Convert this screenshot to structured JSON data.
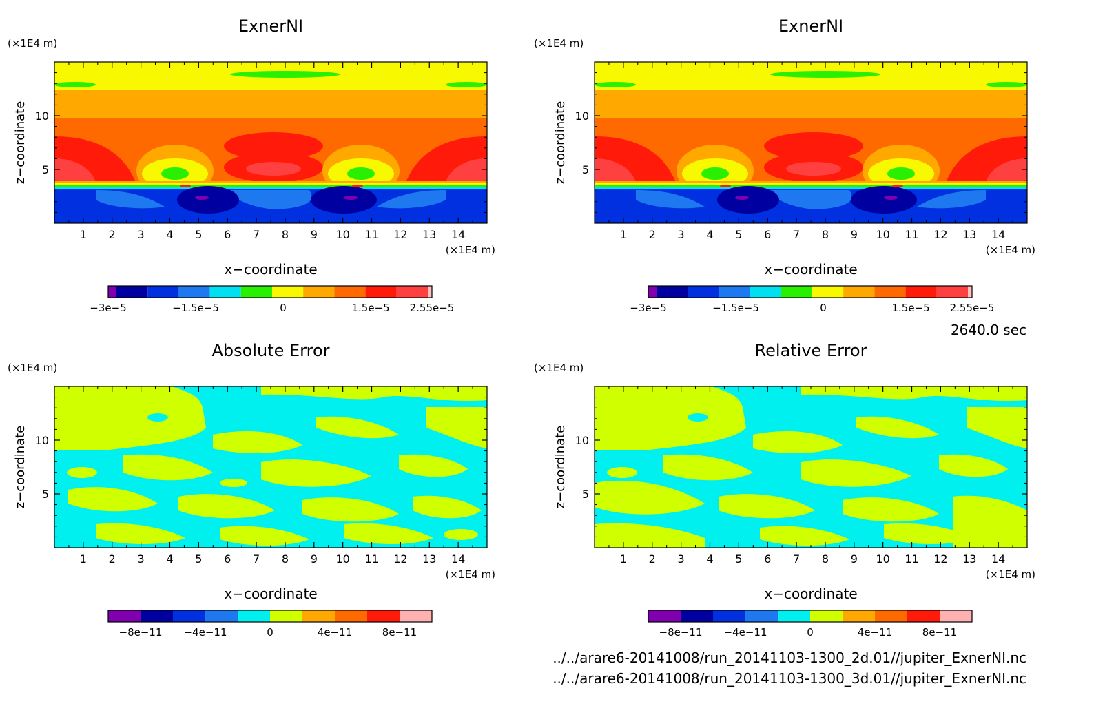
{
  "panels": [
    {
      "id": "p1",
      "title": "ExnerNI",
      "scale_y": "(×1E4 m)",
      "scale_x": "(×1E4 m)",
      "xlabel": "x−coordinate",
      "ylabel": "z−coordinate",
      "field": "exner"
    },
    {
      "id": "p2",
      "title": "ExnerNI",
      "scale_y": "(×1E4 m)",
      "scale_x": "(×1E4 m)",
      "xlabel": "x−coordinate",
      "ylabel": "z−coordinate",
      "field": "exner"
    },
    {
      "id": "p3",
      "title": "Absolute Error",
      "scale_y": "(×1E4 m)",
      "scale_x": "(×1E4 m)",
      "xlabel": "x−coordinate",
      "ylabel": "z−coordinate",
      "field": "abs_err"
    },
    {
      "id": "p4",
      "title": "Relative Error",
      "scale_y": "(×1E4 m)",
      "scale_x": "(×1E4 m)",
      "xlabel": "x−coordinate",
      "ylabel": "z−coordinate",
      "field": "rel_err"
    }
  ],
  "time_label": "2640.0 sec",
  "files": [
    "../../arare6-20141008/run_20141103-1300_2d.01//jupiter_ExnerNI.nc",
    "../../arare6-20141008/run_20141103-1300_3d.01//jupiter_ExnerNI.nc"
  ],
  "chart_data": [
    {
      "type": "heatmap",
      "title": "ExnerNI",
      "xlabel": "x−coordinate",
      "ylabel": "z−coordinate",
      "x_ticks": [
        1,
        2,
        3,
        4,
        5,
        6,
        7,
        8,
        9,
        10,
        11,
        12,
        13,
        14
      ],
      "y_ticks": [
        5,
        10
      ],
      "xlim": [
        0,
        15
      ],
      "ylim": [
        0,
        15
      ],
      "colorbar": {
        "labels": [
          "−3e−5",
          "−1.5e−5",
          "0",
          "1.5e−5",
          "2.55e−5"
        ],
        "label_values": [
          -3e-05,
          -1.5e-05,
          0,
          1.5e-05,
          2.55e-05
        ],
        "range": [
          -3e-05,
          2.55e-05
        ],
        "colors": [
          "#8000b0",
          "#0000a0",
          "#0030e0",
          "#1e78f0",
          "#00e0f0",
          "#28f000",
          "#f8f800",
          "#ffa800",
          "#ff6a00",
          "#ff1a0a",
          "#ff4040",
          "#ffc0c0"
        ]
      }
    },
    {
      "type": "heatmap",
      "title": "ExnerNI",
      "xlabel": "x−coordinate",
      "ylabel": "z−coordinate",
      "x_ticks": [
        1,
        2,
        3,
        4,
        5,
        6,
        7,
        8,
        9,
        10,
        11,
        12,
        13,
        14
      ],
      "y_ticks": [
        5,
        10
      ],
      "xlim": [
        0,
        15
      ],
      "ylim": [
        0,
        15
      ],
      "colorbar": {
        "labels": [
          "−3e−5",
          "−1.5e−5",
          "0",
          "1.5e−5",
          "2.55e−5"
        ],
        "label_values": [
          -3e-05,
          -1.5e-05,
          0,
          1.5e-05,
          2.55e-05
        ],
        "range": [
          -3e-05,
          2.55e-05
        ],
        "colors": [
          "#8000b0",
          "#0000a0",
          "#0030e0",
          "#1e78f0",
          "#00e0f0",
          "#28f000",
          "#f8f800",
          "#ffa800",
          "#ff6a00",
          "#ff1a0a",
          "#ff4040",
          "#ffc0c0"
        ]
      }
    },
    {
      "type": "heatmap",
      "title": "Absolute Error",
      "xlabel": "x−coordinate",
      "ylabel": "z−coordinate",
      "x_ticks": [
        1,
        2,
        3,
        4,
        5,
        6,
        7,
        8,
        9,
        10,
        11,
        12,
        13,
        14
      ],
      "y_ticks": [
        5,
        10
      ],
      "xlim": [
        0,
        15
      ],
      "ylim": [
        0,
        15
      ],
      "colorbar": {
        "labels": [
          "−8e−11",
          "−4e−11",
          "0",
          "4e−11",
          "8e−11"
        ],
        "label_values": [
          -8e-11,
          -4e-11,
          0,
          4e-11,
          8e-11
        ],
        "range": [
          -1e-10,
          1e-10
        ],
        "colors": [
          "#8000b0",
          "#0000a0",
          "#0030e0",
          "#1e78f0",
          "#00f0f0",
          "#d0ff00",
          "#ffa800",
          "#ff6a00",
          "#ff1a0a",
          "#ffb0b0"
        ]
      }
    },
    {
      "type": "heatmap",
      "title": "Relative Error",
      "xlabel": "x−coordinate",
      "ylabel": "z−coordinate",
      "x_ticks": [
        1,
        2,
        3,
        4,
        5,
        6,
        7,
        8,
        9,
        10,
        11,
        12,
        13,
        14
      ],
      "y_ticks": [
        5,
        10
      ],
      "xlim": [
        0,
        15
      ],
      "ylim": [
        0,
        15
      ],
      "colorbar": {
        "labels": [
          "−8e−11",
          "−4e−11",
          "0",
          "4e−11",
          "8e−11"
        ],
        "label_values": [
          -8e-11,
          -4e-11,
          0,
          4e-11,
          8e-11
        ],
        "range": [
          -1e-10,
          1e-10
        ],
        "colors": [
          "#8000b0",
          "#0000a0",
          "#0030e0",
          "#1e78f0",
          "#00f0f0",
          "#d0ff00",
          "#ffa800",
          "#ff6a00",
          "#ff1a0a",
          "#ffb0b0"
        ]
      }
    }
  ]
}
